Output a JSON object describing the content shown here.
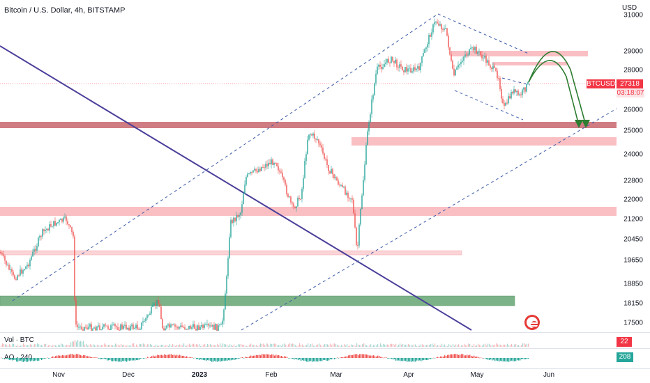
{
  "header": {
    "title": "Bitcoin / U.S. Dollar, 4h, BITSTAMP",
    "currency": "USD"
  },
  "price_axis": {
    "ticks": [
      "31000",
      "29000",
      "28000",
      "27318",
      "26000",
      "25000",
      "24000",
      "22800",
      "22000",
      "21200",
      "20450",
      "19650",
      "18850",
      "18150",
      "17500"
    ]
  },
  "badges": {
    "symbol": "BTCUSD",
    "price": "27318",
    "countdown": "03:18:07"
  },
  "indicators": {
    "volume": {
      "label": "Vol · BTC",
      "value": "22",
      "color": "#f23645"
    },
    "ao": {
      "label": "AO · 240",
      "value": "208",
      "color": "#26a69a"
    }
  },
  "time_axis": {
    "labels": [
      {
        "text": "Nov",
        "bold": false
      },
      {
        "text": "Dec",
        "bold": false
      },
      {
        "text": "2023",
        "bold": true
      },
      {
        "text": "Feb",
        "bold": false
      },
      {
        "text": "Mar",
        "bold": false
      },
      {
        "text": "Apr",
        "bold": false
      },
      {
        "text": "May",
        "bold": false
      },
      {
        "text": "Jun",
        "bold": false
      }
    ]
  },
  "colors": {
    "zone_red": "#f6a3a8",
    "zone_red_dark": "#c0505a",
    "zone_green": "#7cb287",
    "trend_line": "#4a3f9a",
    "channel_line": "#3a59a8",
    "arrow": "#2e7d32",
    "candle_up": "#26a69a",
    "candle_down": "#ef5350"
  },
  "icons": {
    "logo": "us-flag-icon"
  }
}
